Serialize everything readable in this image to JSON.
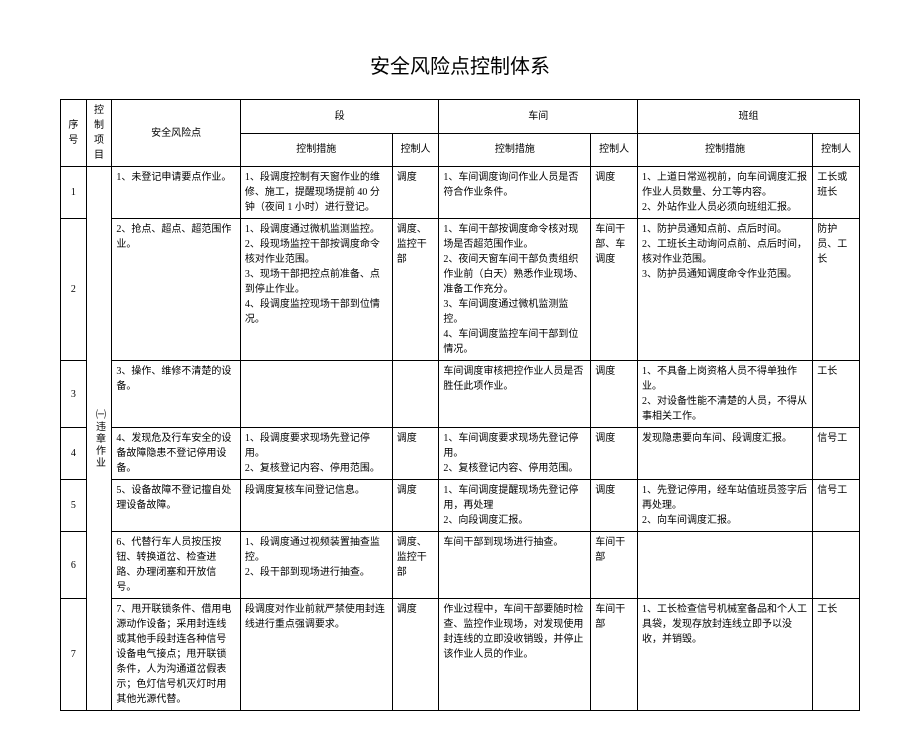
{
  "title": "安全风险点控制体系",
  "header": {
    "seq": "序号",
    "project": "控制项目",
    "risk": "安全风险点",
    "level_a": "段",
    "level_b": "车间",
    "level_c": "班组",
    "measure": "控制措施",
    "controller": "控制人"
  },
  "project_label": "㈠违章作业",
  "rows": [
    {
      "seq": "1",
      "risk": "1、未登记申请要点作业。",
      "a_meas": "1、段调度控制有天窗作业的维修、施工，提醒现场提前 40 分钟（夜间 1 小时）进行登记。",
      "a_ctrl": "调度",
      "b_meas": "1、车间调度询问作业人员是否符合作业条件。",
      "b_ctrl": "调度",
      "c_meas": "1、上道日常巡视前，向车间调度汇报作业人员数量、分工等内容。\n2、外站作业人员必须向班组汇报。",
      "c_ctrl": "工长或班长"
    },
    {
      "seq": "2",
      "risk": "2、抢点、超点、超范围作业。",
      "a_meas": "1、段调度通过微机监测监控。\n2、段现场监控干部按调度命令核对作业范围。\n3、现场干部把控点前准备、点到停止作业。\n4、段调度监控现场干部到位情况。",
      "a_ctrl": "调度、监控干部",
      "b_meas": "1、车间干部按调度命令核对现场是否超范围作业。\n2、夜间天窗车间干部负责组织作业前（白天）熟悉作业现场、准备工作充分。\n3、车间调度通过微机监测监控。\n4、车间调度监控车间干部到位情况。",
      "b_ctrl": "车间干部、车调度",
      "c_meas": "1、防护员通知点前、点后时间。\n2、工班长主动询问点前、点后时间，核对作业范围。\n3、防护员通知调度命令作业范围。",
      "c_ctrl": "防护员、工长"
    },
    {
      "seq": "3",
      "risk": "3、操作、维修不清楚的设备。",
      "a_meas": "",
      "a_ctrl": "",
      "b_meas": "车间调度审核把控作业人员是否胜任此项作业。",
      "b_ctrl": "调度",
      "c_meas": "1、不具备上岗资格人员不得单独作业。\n2、对设备性能不清楚的人员，不得从事相关工作。",
      "c_ctrl": "工长"
    },
    {
      "seq": "4",
      "risk": "4、发现危及行车安全的设备故障隐患不登记停用设备。",
      "a_meas": "1、段调度要求现场先登记停用。\n2、复核登记内容、停用范围。",
      "a_ctrl": "调度",
      "b_meas": "1、车间调度要求现场先登记停用。\n2、复核登记内容、停用范围。",
      "b_ctrl": "调度",
      "c_meas": "发现隐患要向车间、段调度汇报。",
      "c_ctrl": "信号工"
    },
    {
      "seq": "5",
      "risk": "5、设备故障不登记擅自处理设备故障。",
      "a_meas": "段调度复核车间登记信息。",
      "a_ctrl": "调度",
      "b_meas": "1、车间调度提醒现场先登记停用，再处理\n2、向段调度汇报。",
      "b_ctrl": "调度",
      "c_meas": "1、先登记停用，经车站值班员签字后再处理。\n2、向车间调度汇报。",
      "c_ctrl": "信号工"
    },
    {
      "seq": "6",
      "risk": "6、代替行车人员按压按钮、转换道岔、检查进路、办理闭塞和开放信号。",
      "a_meas": "1、段调度通过视频装置抽查监控。\n2、段干部到现场进行抽查。",
      "a_ctrl": "调度、监控干部",
      "b_meas": "车间干部到现场进行抽查。",
      "b_ctrl": "车间干部",
      "c_meas": "",
      "c_ctrl": ""
    },
    {
      "seq": "7",
      "risk": "7、甩开联锁条件、借用电源动作设备；采用封连线或其他手段封连各种信号设备电气接点；甩开联锁条件，人为沟通道岔假表示；色灯信号机灭灯时用其他光源代替。",
      "a_meas": "段调度对作业前就严禁使用封连线进行重点强调要求。",
      "a_ctrl": "调度",
      "b_meas": "作业过程中，车间干部要随时检查、监控作业现场，对发现使用封连线的立即没收销毁，并停止该作业人员的作业。",
      "b_ctrl": "车间干部",
      "c_meas": "1、工长检查信号机械室备品和个人工具袋，发现存放封连线立即予以没收，并销毁。",
      "c_ctrl": "工长"
    }
  ]
}
